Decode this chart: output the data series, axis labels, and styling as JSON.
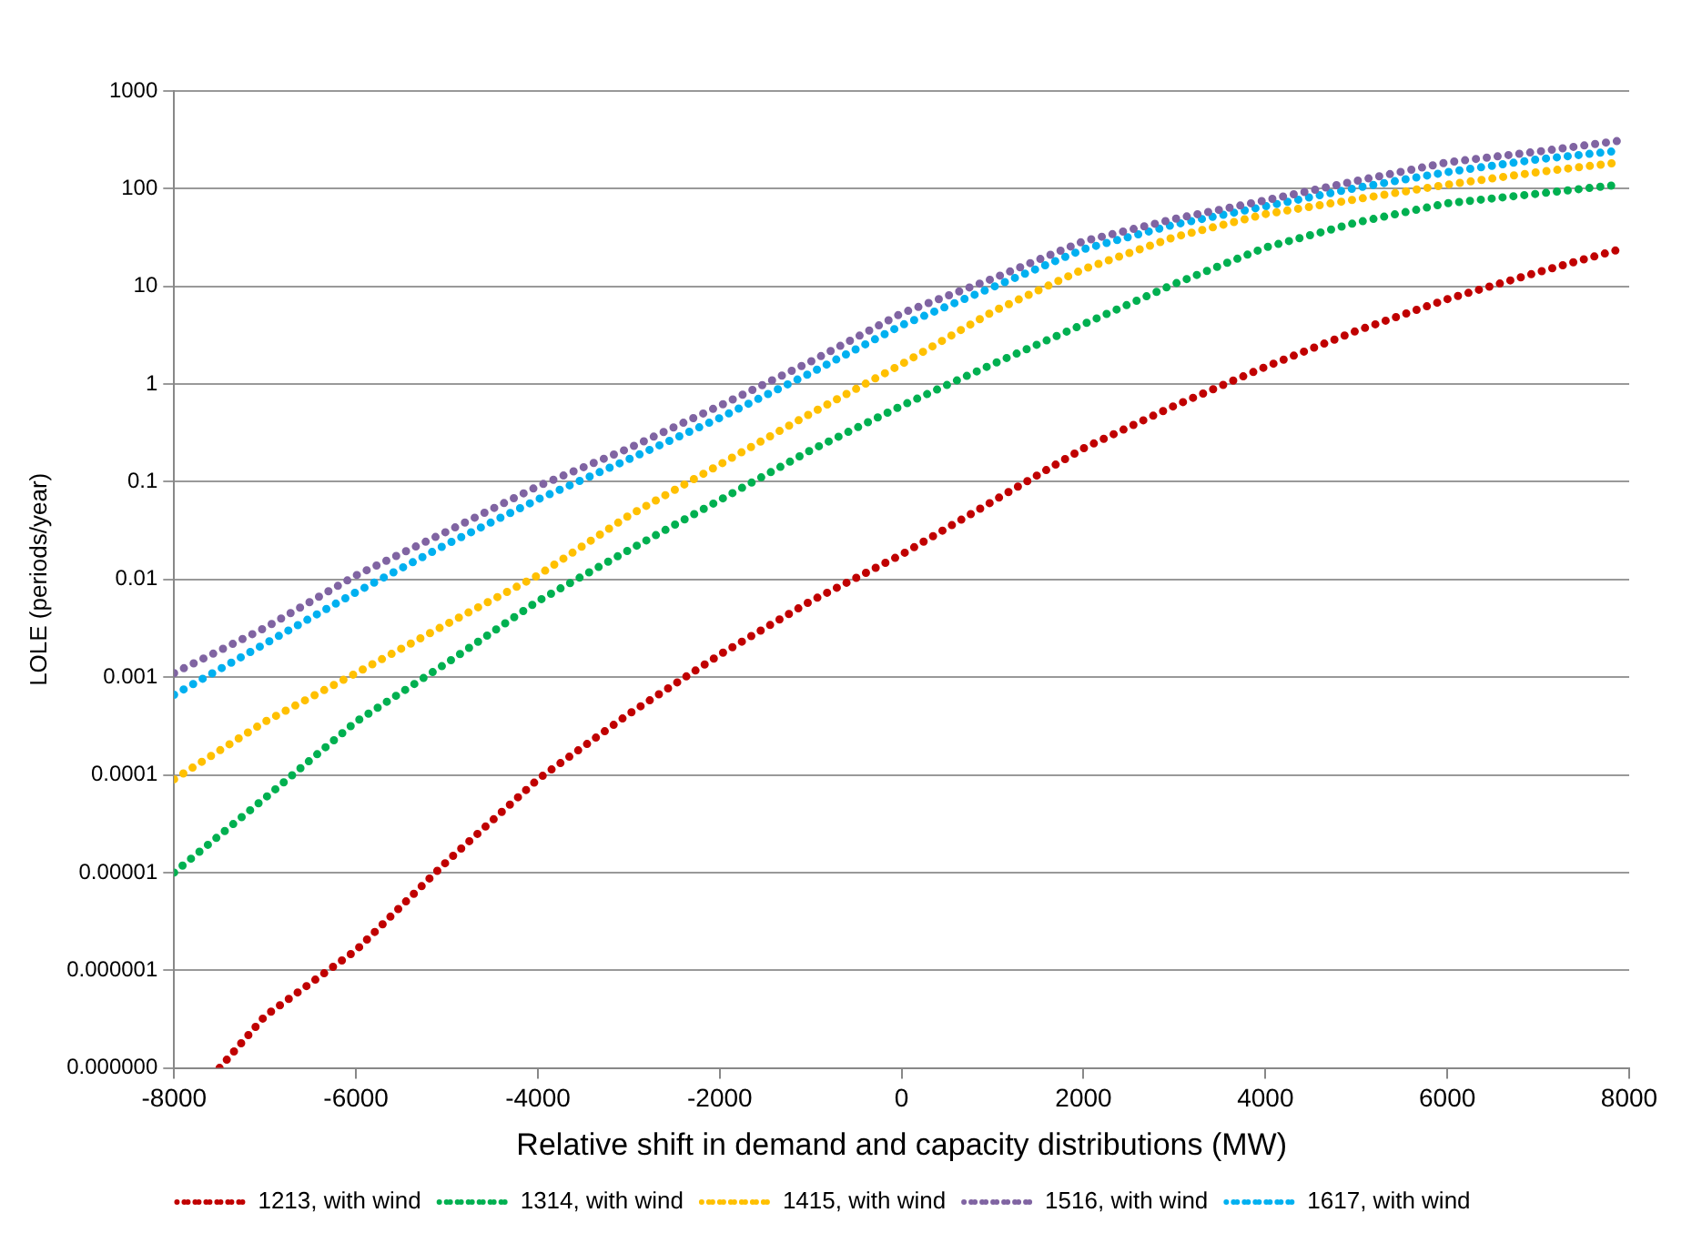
{
  "chart_data": {
    "type": "line",
    "xlabel": "Relative shift in demand and capacity distributions (MW)",
    "ylabel": "LOLE (periods/year)",
    "log": "y",
    "grid": "y",
    "legend": "bottom",
    "line_style": "dotted",
    "marker": "none",
    "xlim": [
      -8000,
      8000
    ],
    "xticks": [
      -8000,
      -6000,
      -4000,
      -2000,
      0,
      2000,
      4000,
      6000,
      8000
    ],
    "ylim": [
      1e-07,
      1000
    ],
    "yticks": [
      {
        "value": 1e-07,
        "label": "0.000000"
      },
      {
        "value": 1e-06,
        "label": "0.000001"
      },
      {
        "value": 1e-05,
        "label": "0.00001"
      },
      0.0001,
      0.001,
      0.01,
      0.1,
      1,
      10,
      100,
      1000
    ],
    "series": [
      {
        "name": "1213, with wind",
        "color": "#c00000",
        "x": [
          -7500,
          -7000,
          -6000,
          -5000,
          -4000,
          -3000,
          -2000,
          -1000,
          0,
          1000,
          2000,
          3000,
          4000,
          5000,
          6000,
          7000,
          7900
        ],
        "values": [
          1e-07,
          3.4e-07,
          1.6e-06,
          1.3e-05,
          9e-05,
          0.00042,
          0.0017,
          0.006,
          0.018,
          0.063,
          0.22,
          0.6,
          1.5,
          3.5,
          7.4,
          14,
          24
        ]
      },
      {
        "name": "1314, with wind",
        "color": "#00b050",
        "x": [
          -8000,
          -7000,
          -6000,
          -5000,
          -4000,
          -3000,
          -2000,
          -1000,
          0,
          1000,
          2000,
          3000,
          4000,
          5000,
          6000,
          7000,
          7900
        ],
        "values": [
          1e-05,
          5.8e-05,
          0.00035,
          0.0014,
          0.006,
          0.02,
          0.065,
          0.21,
          0.6,
          1.6,
          4.1,
          10.6,
          25,
          45,
          71,
          89,
          110
        ]
      },
      {
        "name": "1415, with wind",
        "color": "#ffc000",
        "x": [
          -8000,
          -7000,
          -6000,
          -5000,
          -4000,
          -3000,
          -2000,
          -1000,
          0,
          1000,
          2000,
          3000,
          4000,
          5000,
          6000,
          7000,
          7900
        ],
        "values": [
          9e-05,
          0.00035,
          0.0011,
          0.0035,
          0.011,
          0.045,
          0.15,
          0.5,
          1.6,
          5.5,
          15,
          32,
          55,
          78,
          110,
          148,
          186
        ]
      },
      {
        "name": "1516, with wind",
        "color": "#8064a2",
        "x": [
          -8000,
          -7000,
          -6000,
          -5000,
          -4000,
          -3000,
          -2000,
          -1000,
          0,
          1000,
          2000,
          3000,
          4000,
          5000,
          6000,
          7000,
          7900
        ],
        "values": [
          0.0011,
          0.0032,
          0.011,
          0.031,
          0.09,
          0.22,
          0.6,
          1.7,
          5.3,
          12,
          29,
          49,
          76,
          120,
          186,
          240,
          310
        ]
      },
      {
        "name": "1617, with wind",
        "color": "#00b0f0",
        "x": [
          -8000,
          -7000,
          -6000,
          -5000,
          -4000,
          -3000,
          -2000,
          -1000,
          0,
          1000,
          2000,
          3000,
          4000,
          5000,
          6000,
          7000,
          7900
        ],
        "values": [
          0.00066,
          0.0022,
          0.0074,
          0.023,
          0.066,
          0.17,
          0.45,
          1.3,
          4,
          9.8,
          24,
          43,
          66,
          102,
          148,
          200,
          245
        ]
      }
    ]
  }
}
